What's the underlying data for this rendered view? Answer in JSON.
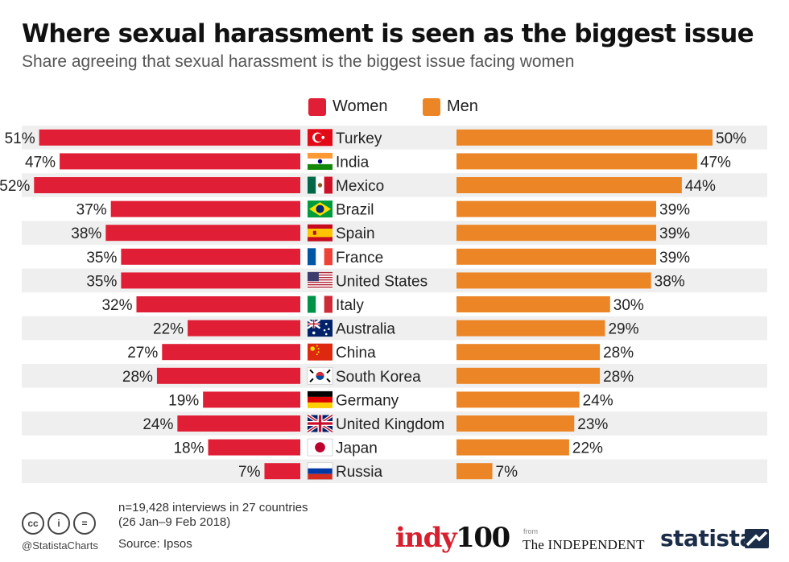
{
  "title": "Where sexual harassment is seen as the biggest issue",
  "subtitle": "Share agreeing that sexual harassment is the biggest issue facing women",
  "colors": {
    "women": "#e01f36",
    "men": "#ec8526",
    "stripe": "#efefef"
  },
  "legend": [
    {
      "name": "Women",
      "color": "#e01f36"
    },
    {
      "name": "Men",
      "color": "#ec8526"
    }
  ],
  "chart_data": {
    "type": "bar",
    "orientation": "horizontal-diverging",
    "categories": [
      "Turkey",
      "India",
      "Mexico",
      "Brazil",
      "Spain",
      "France",
      "United States",
      "Italy",
      "Australia",
      "China",
      "South Korea",
      "Germany",
      "United Kingdom",
      "Japan",
      "Russia"
    ],
    "series": [
      {
        "name": "Women",
        "values": [
          51,
          47,
          52,
          37,
          38,
          35,
          35,
          32,
          22,
          27,
          28,
          19,
          24,
          18,
          7
        ]
      },
      {
        "name": "Men",
        "values": [
          50,
          47,
          44,
          39,
          39,
          39,
          38,
          30,
          29,
          28,
          28,
          24,
          23,
          22,
          7
        ]
      }
    ],
    "unit": "%",
    "xlim": [
      0,
      52
    ],
    "grid": false,
    "legend_position": "top-center",
    "flag_icons": [
      "turkey-flag-icon",
      "india-flag-icon",
      "mexico-flag-icon",
      "brazil-flag-icon",
      "spain-flag-icon",
      "france-flag-icon",
      "usa-flag-icon",
      "italy-flag-icon",
      "australia-flag-icon",
      "china-flag-icon",
      "south-korea-flag-icon",
      "germany-flag-icon",
      "uk-flag-icon",
      "japan-flag-icon",
      "russia-flag-icon"
    ]
  },
  "footer": {
    "note_line1": "n=19,428 interviews in 27 countries",
    "note_line2": "(26 Jan–9 Feb 2018)",
    "source": "Source: Ipsos",
    "handle": "@StatistaCharts",
    "cc_icons": [
      "cc-icon",
      "by-icon",
      "nd-icon"
    ],
    "cc_labels": [
      "cc",
      "i",
      "="
    ]
  },
  "logos": {
    "indy_text": "indy",
    "indy_num": "100",
    "from": "from",
    "independent": "The INDEPENDENT",
    "statista": "statista"
  }
}
